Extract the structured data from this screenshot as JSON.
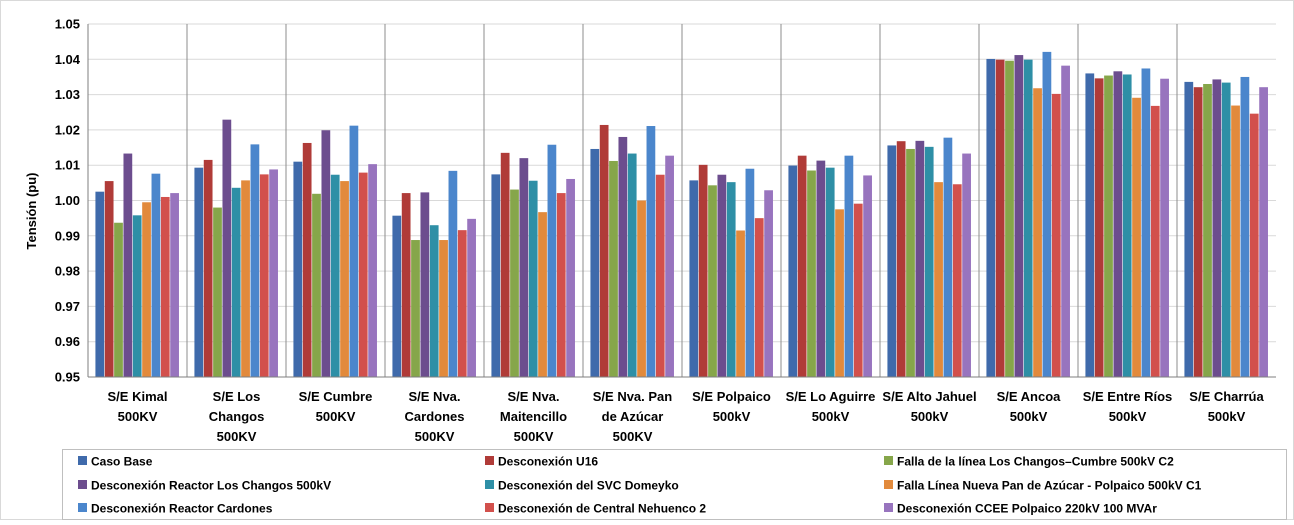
{
  "chart_data": {
    "type": "bar",
    "title": "",
    "xlabel": "",
    "ylabel": "Tensión (pu)",
    "ylim": [
      0.95,
      1.05
    ],
    "yticks": [
      0.95,
      0.96,
      0.97,
      0.98,
      0.99,
      1.0,
      1.01,
      1.02,
      1.03,
      1.04,
      1.05
    ],
    "ytick_labels": [
      "0.95",
      "0.96",
      "0.97",
      "0.98",
      "0.99",
      "1.00",
      "1.01",
      "1.02",
      "1.03",
      "1.04",
      "1.05"
    ],
    "grid": "horizontal",
    "legend_position": "bottom",
    "categories": [
      [
        "S/E Kimal",
        "500KV"
      ],
      [
        "S/E Los",
        "Changos",
        "500KV"
      ],
      [
        "S/E Cumbre",
        "500KV"
      ],
      [
        "S/E Nva.",
        "Cardones",
        "500KV"
      ],
      [
        "S/E Nva.",
        "Maitencillo",
        "500KV"
      ],
      [
        "S/E Nva. Pan",
        "de Azúcar",
        "500KV"
      ],
      [
        "S/E Polpaico",
        "500kV"
      ],
      [
        "S/E Lo Aguirre",
        "500kV"
      ],
      [
        "S/E Alto Jahuel",
        "500kV"
      ],
      [
        "S/E Ancoa",
        "500kV"
      ],
      [
        "S/E Entre Ríos",
        "500kV"
      ],
      [
        "S/E Charrúa",
        "500kV"
      ]
    ],
    "series": [
      {
        "name": "Caso Base",
        "color": "#3F6AAB",
        "values": [
          1.0025,
          1.0093,
          1.011,
          0.9957,
          1.0074,
          1.0146,
          1.0057,
          1.0099,
          1.0156,
          1.0401,
          1.036,
          1.0336
        ]
      },
      {
        "name": "Desconexión U16",
        "color": "#B03B38",
        "values": [
          1.0055,
          1.0115,
          1.0163,
          1.0021,
          1.0135,
          1.0214,
          1.0101,
          1.0127,
          1.0168,
          1.0399,
          1.0346,
          1.0321
        ]
      },
      {
        "name": "Falla de la línea Los Changos–Cumbre 500kV C2",
        "color": "#86A64A",
        "values": [
          0.9937,
          0.998,
          1.0019,
          0.9888,
          1.0031,
          1.0112,
          1.0043,
          1.0085,
          1.0146,
          1.0396,
          1.0354,
          1.033
        ]
      },
      {
        "name": "Desconexión Reactor Los Changos 500kV",
        "color": "#6C4D8E",
        "values": [
          1.0133,
          1.0229,
          1.0199,
          1.0023,
          1.012,
          1.018,
          1.0073,
          1.0113,
          1.0169,
          1.0412,
          1.0366,
          1.0343
        ]
      },
      {
        "name": "Desconexión del SVC Domeyko",
        "color": "#2E8FA6",
        "values": [
          0.9958,
          1.0036,
          1.0073,
          0.993,
          1.0056,
          1.0133,
          1.0052,
          1.0093,
          1.0152,
          1.0399,
          1.0357,
          1.0334
        ]
      },
      {
        "name": "Falla Línea Nueva Pan de Azúcar - Polpaico 500kV C1",
        "color": "#E28A3C",
        "values": [
          0.9995,
          1.0057,
          1.0055,
          0.9888,
          0.9967,
          1.0,
          0.9915,
          0.9975,
          1.0052,
          1.0318,
          1.0291,
          1.0269
        ]
      },
      {
        "name": "Desconexión Reactor Cardones",
        "color": "#4B86CC",
        "values": [
          1.0076,
          1.0159,
          1.0212,
          1.0084,
          1.0158,
          1.0211,
          1.009,
          1.0127,
          1.0178,
          1.0421,
          1.0374,
          1.035
        ]
      },
      {
        "name": "Desconexión de Central Nehuenco 2",
        "color": "#D2504C",
        "values": [
          1.001,
          1.0074,
          1.0079,
          0.9916,
          1.0021,
          1.0073,
          0.995,
          0.9991,
          1.0046,
          1.0302,
          1.0268,
          1.0246
        ]
      },
      {
        "name": "Desconexión CCEE Polpaico 220kV 100 MVAr",
        "color": "#9874BE",
        "values": [
          1.0021,
          1.0088,
          1.0103,
          0.9948,
          1.0061,
          1.0127,
          1.0029,
          1.0071,
          1.0133,
          1.0382,
          1.0345,
          1.0321
        ]
      }
    ]
  }
}
